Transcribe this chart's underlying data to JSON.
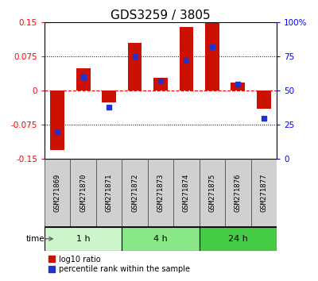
{
  "title": "GDS3259 / 3805",
  "samples": [
    "GSM271869",
    "GSM271870",
    "GSM271871",
    "GSM271872",
    "GSM271873",
    "GSM271874",
    "GSM271875",
    "GSM271876",
    "GSM271877"
  ],
  "log10_ratio": [
    -0.13,
    0.05,
    -0.025,
    0.105,
    0.028,
    0.14,
    0.148,
    0.018,
    -0.04
  ],
  "percentile_rank": [
    20,
    60,
    38,
    75,
    57,
    72,
    82,
    55,
    30
  ],
  "ylim_left": [
    -0.15,
    0.15
  ],
  "ylim_right": [
    0,
    100
  ],
  "yticks_left": [
    -0.15,
    -0.075,
    0,
    0.075,
    0.15
  ],
  "yticks_right": [
    0,
    25,
    50,
    75,
    100
  ],
  "ytick_labels_left": [
    "-0.15",
    "-0.075",
    "0",
    "0.075",
    "0.15"
  ],
  "ytick_labels_right": [
    "0",
    "25",
    "50",
    "75",
    "100%"
  ],
  "hline_positions": [
    -0.075,
    0,
    0.075
  ],
  "time_groups": [
    {
      "label": "1 h",
      "start": 0,
      "end": 3,
      "color": "#ccf5cc"
    },
    {
      "label": "4 h",
      "start": 3,
      "end": 6,
      "color": "#88e888"
    },
    {
      "label": "24 h",
      "start": 6,
      "end": 9,
      "color": "#44cc44"
    }
  ],
  "bar_color_red": "#cc1100",
  "bar_color_blue": "#2233cc",
  "bar_width": 0.55,
  "bg_color": "#ffffff",
  "plot_bg_color": "#ffffff",
  "cell_bg_color": "#d0d0d0",
  "title_fontsize": 11,
  "tick_fontsize": 7.5,
  "label_fontsize": 6.5
}
